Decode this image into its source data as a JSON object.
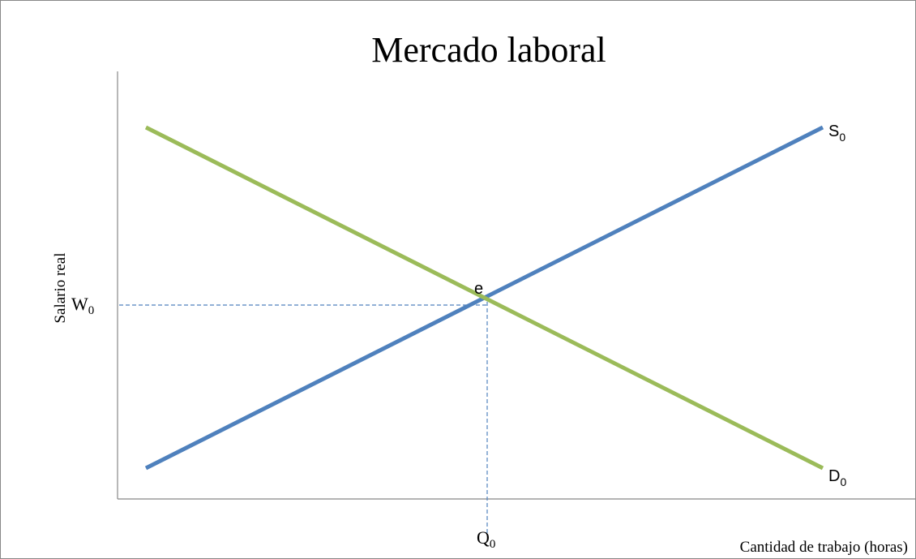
{
  "title": "Mercado laboral",
  "y_axis_label": "Salario real",
  "x_axis_label": "Cantidad de trabajo (horas)",
  "wage_label": {
    "main": "W",
    "sub": "0"
  },
  "quantity_label": {
    "main": "Q",
    "sub": "0"
  },
  "supply_label": {
    "main": "S",
    "sub": "0"
  },
  "demand_label": {
    "main": "D",
    "sub": "0"
  },
  "equilibrium_label": "e"
}
